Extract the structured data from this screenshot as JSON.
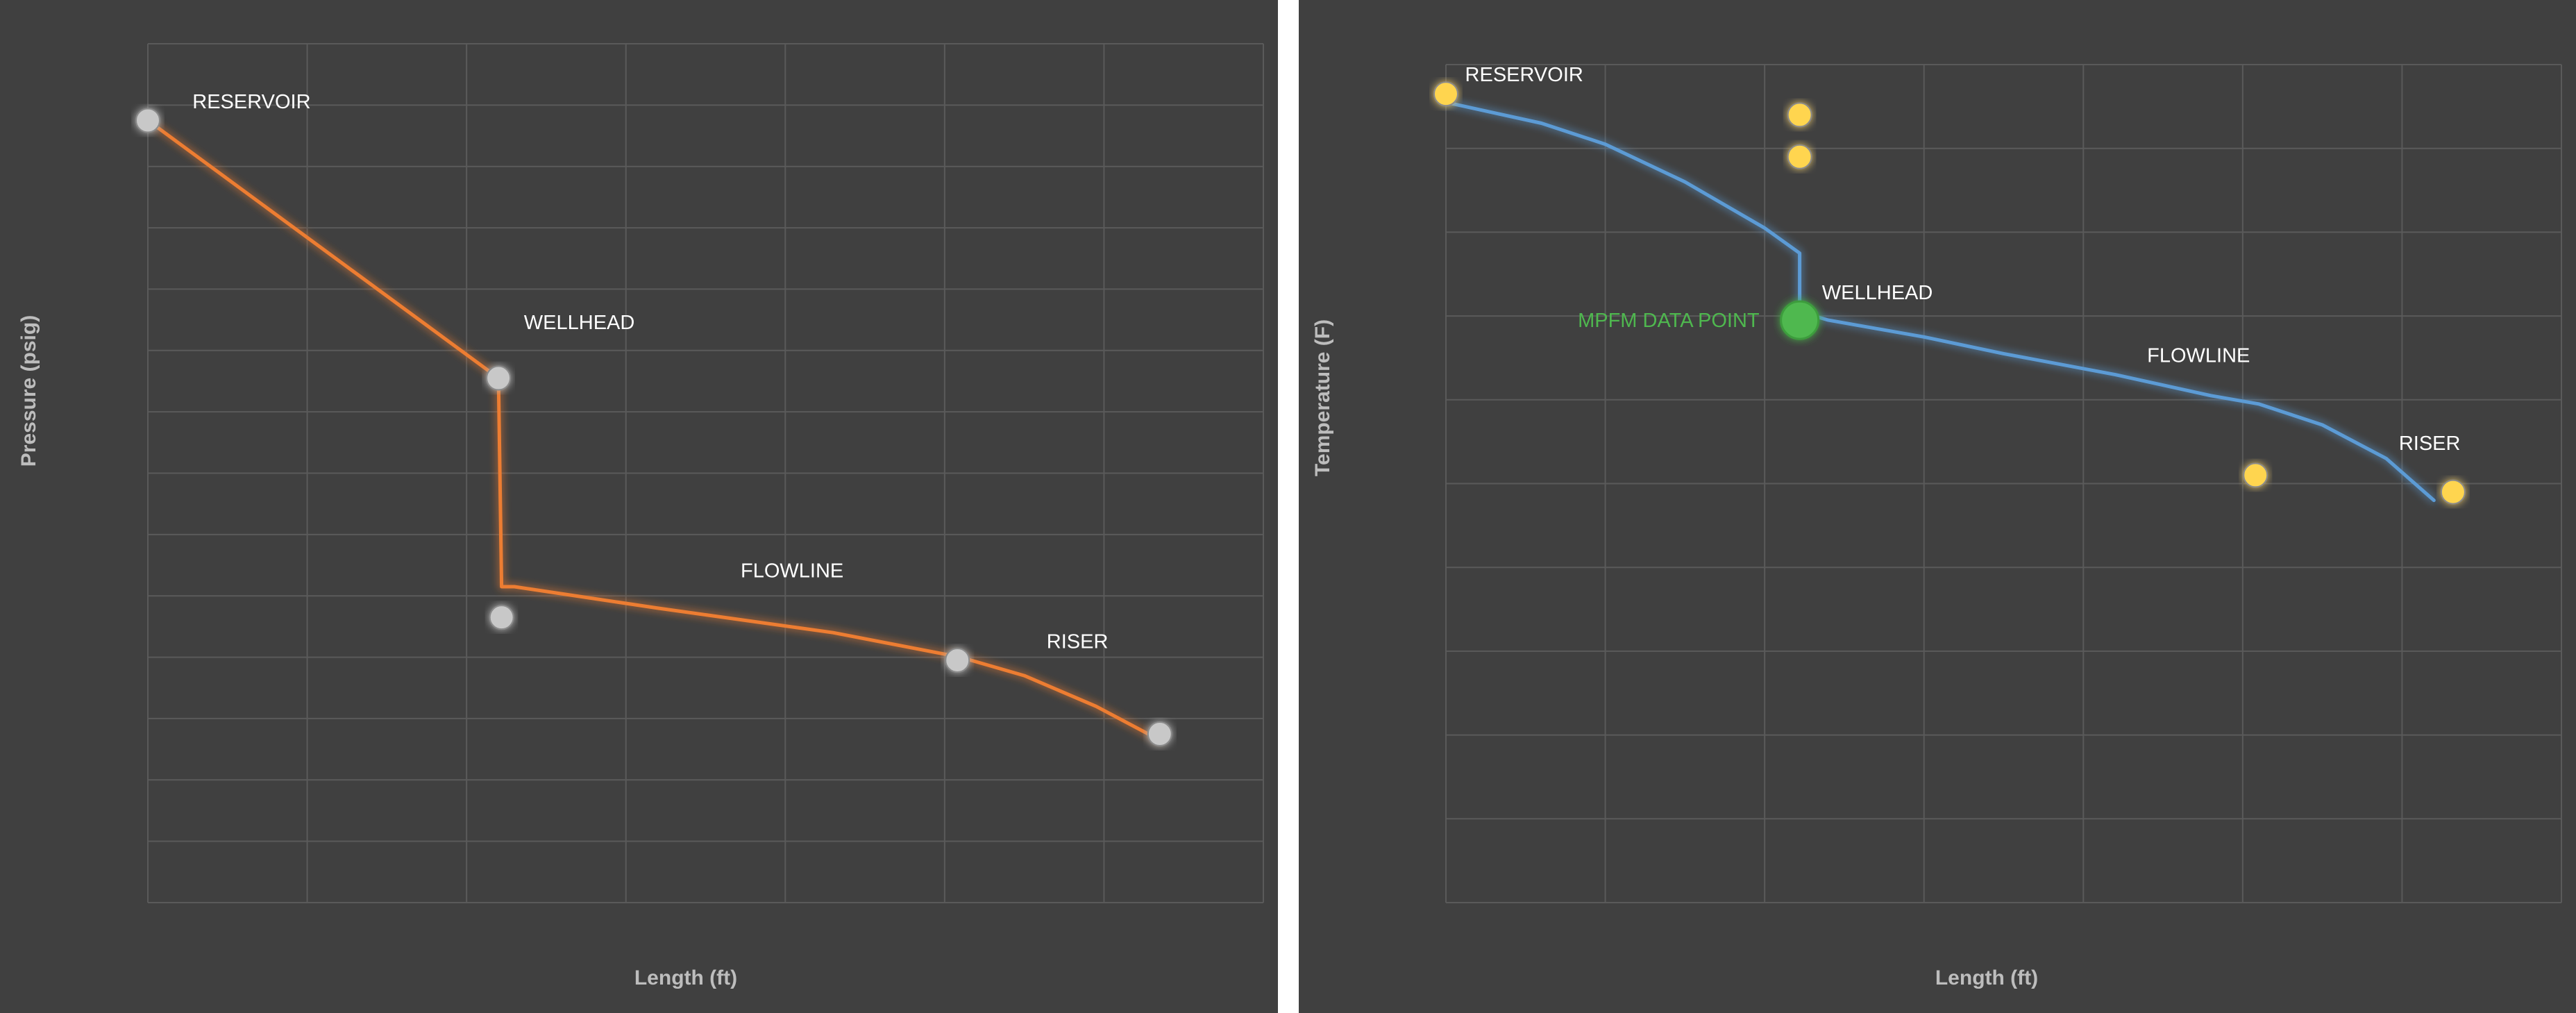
{
  "colors": {
    "panel_background": "#404040",
    "gridline": "#5a5a5a",
    "pressure_line": "#ed7d31",
    "pressure_marker": "#c8c8c8",
    "temperature_line": "#5b9bd5",
    "temperature_marker": "#ffd54f",
    "mpfm_marker": "#4fb84f",
    "label_text": "#ffffff",
    "axis_title_text": "#bdbdbd"
  },
  "chart_data": [
    {
      "type": "line",
      "title": "",
      "xlabel": "Length (ft)",
      "ylabel": "Pressure (psig)",
      "xlim": [
        0,
        7
      ],
      "ylim": [
        0,
        14
      ],
      "x_gridlines": 7,
      "y_gridlines": 14,
      "grid": true,
      "tick_labels_shown": false,
      "legend": "none",
      "series": [
        {
          "style": "line",
          "color": "#ed7d31",
          "x": [
            0,
            2.2,
            2.22,
            2.3,
            3.2,
            4.3,
            5.1,
            5.5,
            5.95,
            6.35
          ],
          "y": [
            12.75,
            8.55,
            5.15,
            5.15,
            4.8,
            4.4,
            4.0,
            3.7,
            3.2,
            2.65
          ]
        },
        {
          "style": "markers",
          "color": "#c8c8c8",
          "x": [
            0,
            2.2,
            2.22,
            5.08,
            6.35
          ],
          "y": [
            12.75,
            8.55,
            4.65,
            3.95,
            2.75
          ]
        }
      ],
      "annotations": [
        {
          "text": "RESERVOIR",
          "x": 0.28,
          "y": 12.95
        },
        {
          "text": "WELLHEAD",
          "x": 2.36,
          "y": 9.35
        },
        {
          "text": "FLOWLINE",
          "x": 3.72,
          "y": 5.3
        },
        {
          "text": "RISER",
          "x": 5.64,
          "y": 4.15
        }
      ]
    },
    {
      "type": "line",
      "title": "",
      "xlabel": "Length (ft)",
      "ylabel": "Temperature (F)",
      "xlim": [
        0,
        7
      ],
      "ylim": [
        0,
        10
      ],
      "x_gridlines": 7,
      "y_gridlines": 10,
      "grid": true,
      "tick_labels_shown": false,
      "legend": "none",
      "series": [
        {
          "style": "line",
          "color": "#5b9bd5",
          "x": [
            0,
            0.6,
            1.0,
            1.5,
            2.0,
            2.22,
            2.22,
            2.4,
            3.0,
            3.5,
            4.2,
            4.8,
            5.1,
            5.5,
            5.9,
            6.2
          ],
          "y": [
            9.55,
            9.3,
            9.05,
            8.6,
            8.05,
            7.75,
            7.05,
            6.95,
            6.75,
            6.55,
            6.3,
            6.05,
            5.95,
            5.7,
            5.3,
            4.8
          ]
        },
        {
          "style": "markers",
          "color": "#ffd54f",
          "x": [
            0,
            2.22,
            2.22,
            5.08,
            6.32
          ],
          "y": [
            9.65,
            9.4,
            8.9,
            5.1,
            4.9
          ]
        },
        {
          "style": "markers",
          "name": "MPFM DATA POINT",
          "color": "#4fb84f",
          "x": [
            2.22
          ],
          "y": [
            6.95
          ]
        }
      ],
      "annotations": [
        {
          "text": "RESERVOIR",
          "x": 0.12,
          "y": 9.8
        },
        {
          "text": "WELLHEAD",
          "x": 2.36,
          "y": 7.2
        },
        {
          "text": "FLOWLINE",
          "x": 4.4,
          "y": 6.45
        },
        {
          "text": "RISER",
          "x": 5.98,
          "y": 5.4
        }
      ]
    }
  ]
}
